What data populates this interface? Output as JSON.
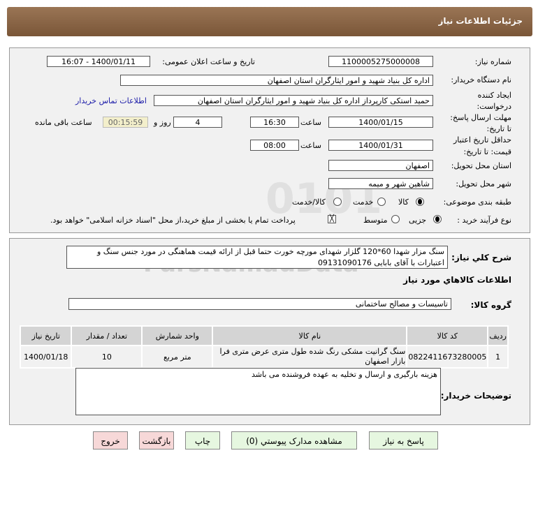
{
  "header": {
    "title": "جزئیات اطلاعات نیاز"
  },
  "form": {
    "need_number_label": "شماره نیاز:",
    "need_number": "1100005275000008",
    "announce_label": "تاریخ و ساعت اعلان عمومی:",
    "announce_value": "1400/01/11 - 16:07",
    "buyer_label": "نام دستگاه خریدار:",
    "buyer_value": "اداره کل بنیاد شهید و امور ایثارگران استان اصفهان",
    "creator_label_1": "ایجاد کننده",
    "creator_label_2": "درخواست:",
    "creator_value": "حمید استکی کارپرداز اداره کل بنیاد شهید و امور ایثارگران استان اصفهان",
    "contact_link": "اطلاعات تماس خریدار",
    "deadline_label_1": "مهلت ارسال پاسخ:",
    "deadline_label_2": "تا تاریخ:",
    "deadline_date": "1400/01/15",
    "time_label": "ساعت",
    "deadline_time": "16:30",
    "days": "4",
    "days_label": "روز و",
    "remaining": "00:15:59",
    "remaining_label": "ساعت باقی مانده",
    "validity_label_1": "حداقل تاریخ اعتبار",
    "validity_label_2": "قیمت: تا تاریخ:",
    "validity_date": "1400/01/31",
    "validity_time": "08:00",
    "province_label": "استان محل تحویل:",
    "province": "اصفهان",
    "city_label": "شهر محل تحویل:",
    "city": "شاهین شهر و میمه",
    "category_label": "طبقه بندی موضوعی:",
    "category_options": [
      "کالا",
      "خدمت",
      "کالا/خدمت"
    ],
    "category_selected": "کالا",
    "process_label": "نوع فرآیند خرید :",
    "process_options": [
      "جزیی",
      "متوسط"
    ],
    "process_selected": "جزیی",
    "payment_note": "پرداخت تمام یا بخشی از مبلغ خرید،از محل \"اسناد خزانه اسلامی\" خواهد بود."
  },
  "details": {
    "desc_label": "شرح کلي نياز:",
    "desc_value": "سنگ مزار شهدا 60*120 گلزار شهدای مورچه خورت حتما قبل از ارائه قیمت هماهنگی در مورد جنس سنگ و اعتبارات با آقای بابایی 09131090176",
    "goods_title": "اطلاعات کالاهاي مورد نياز",
    "group_label": "گروه کالا:",
    "group_value": "تاسیسات و مصالح ساختمانی",
    "table": {
      "headers": [
        "ردیف",
        "کد کالا",
        "نام کالا",
        "واحد شمارش",
        "تعداد / مقدار",
        "تاریخ نیاز"
      ],
      "rows": [
        [
          "1",
          "0822411673280005",
          "سنگ گرانیت مشکی رنگ شده طول متری عرض متری فرا بازار اصفهان",
          "متر مربع",
          "10",
          "1400/01/18"
        ]
      ]
    },
    "buyer_notes_label": "توضیحات خریدار:",
    "buyer_notes": "هزینه بارگیری و ارسال و تخلیه به عهده فروشنده می باشد"
  },
  "buttons": {
    "reply": "پاسخ به نیاز",
    "attachments": "مشاهده مدارک پیوستي (0)",
    "print": "چاپ",
    "back": "بازگشت",
    "exit": "خروج"
  },
  "watermark": "ParsNamadData"
}
